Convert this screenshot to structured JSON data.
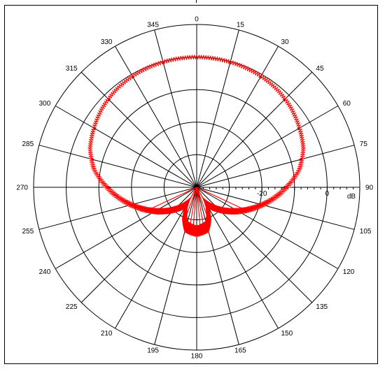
{
  "chart_data": {
    "type": "polar",
    "title": "",
    "angle_tick_labels": [
      "0",
      "15",
      "30",
      "45",
      "60",
      "75",
      "90",
      "105",
      "120",
      "135",
      "150",
      "165",
      "180",
      "195",
      "210",
      "225",
      "240",
      "255",
      "270",
      "285",
      "300",
      "315",
      "330",
      "345"
    ],
    "radial_tick_labels": [
      {
        "label": "-20",
        "db": -20
      },
      {
        "label": "0",
        "db": 0
      }
    ],
    "radial_unit": "dB",
    "radial_range_db": [
      -40,
      10
    ],
    "radial_rings_db": [
      -30,
      -20,
      -10,
      0,
      10
    ],
    "grid": true,
    "series": [
      {
        "color": "#ff0000",
        "points": [
          {
            "angle": 0,
            "db": 0.0
          },
          {
            "angle": 10,
            "db": -0.1
          },
          {
            "angle": 20,
            "db": -0.3
          },
          {
            "angle": 30,
            "db": -0.6
          },
          {
            "angle": 40,
            "db": -1.2
          },
          {
            "angle": 50,
            "db": -2.2
          },
          {
            "angle": 60,
            "db": -3.6
          },
          {
            "angle": 70,
            "db": -5.2
          },
          {
            "angle": 80,
            "db": -8.0
          },
          {
            "angle": 90,
            "db": -12.5
          },
          {
            "angle": 100,
            "db": -17.0
          },
          {
            "angle": 110,
            "db": -21.5
          },
          {
            "angle": 120,
            "db": -25.5
          },
          {
            "angle": 130,
            "db": -29.0
          },
          {
            "angle": 140,
            "db": -32.0
          },
          {
            "angle": 150,
            "db": -34.5
          },
          {
            "angle": 155,
            "db": -31.5
          },
          {
            "angle": 165,
            "db": -27.5
          },
          {
            "angle": 172,
            "db": -27.0
          },
          {
            "angle": 180,
            "db": -26.5
          },
          {
            "angle": 188,
            "db": -27.0
          },
          {
            "angle": 195,
            "db": -27.5
          },
          {
            "angle": 205,
            "db": -31.5
          },
          {
            "angle": 210,
            "db": -34.5
          },
          {
            "angle": 220,
            "db": -32.0
          },
          {
            "angle": 230,
            "db": -29.0
          },
          {
            "angle": 240,
            "db": -25.5
          },
          {
            "angle": 250,
            "db": -21.5
          },
          {
            "angle": 260,
            "db": -17.0
          },
          {
            "angle": 270,
            "db": -12.5
          },
          {
            "angle": 280,
            "db": -8.0
          },
          {
            "angle": 290,
            "db": -5.2
          },
          {
            "angle": 300,
            "db": -3.6
          },
          {
            "angle": 310,
            "db": -2.2
          },
          {
            "angle": 320,
            "db": -1.2
          },
          {
            "angle": 330,
            "db": -0.6
          },
          {
            "angle": 340,
            "db": -0.3
          },
          {
            "angle": 350,
            "db": -0.1
          },
          {
            "angle": 360,
            "db": 0.0
          }
        ]
      }
    ]
  }
}
